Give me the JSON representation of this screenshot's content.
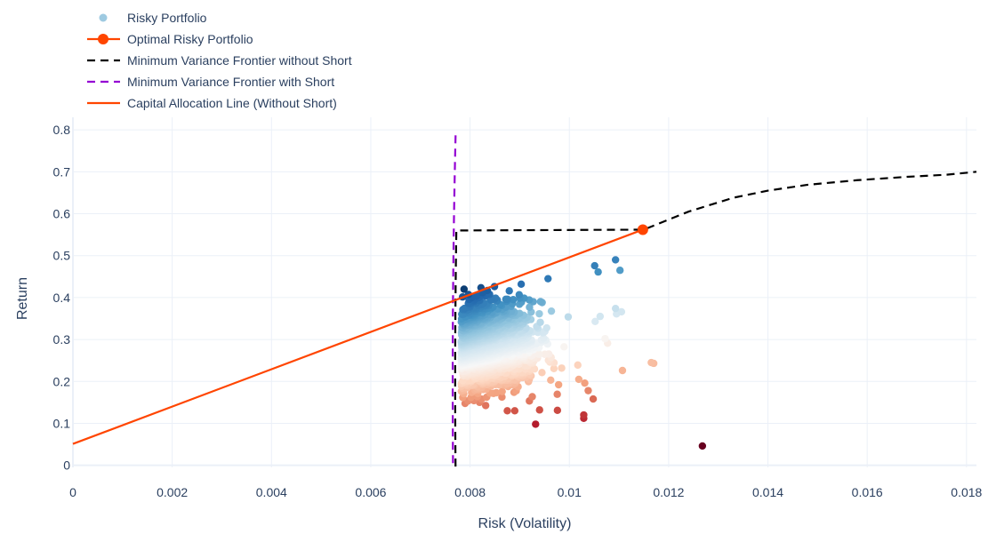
{
  "chart_data": {
    "type": "scatter",
    "title": "",
    "xlabel": "Risk (Volatility)",
    "ylabel": "Return",
    "xlim": [
      0,
      0.0182
    ],
    "ylim": [
      -0.005,
      0.83
    ],
    "x_ticks": [
      0,
      0.002,
      0.004,
      0.006,
      0.008,
      0.01,
      0.012,
      0.014,
      0.016,
      0.018
    ],
    "x_tick_labels": [
      "0",
      "0.002",
      "0.004",
      "0.006",
      "0.008",
      "0.01",
      "0.012",
      "0.014",
      "0.016",
      "0.018"
    ],
    "y_ticks": [
      0,
      0.1,
      0.2,
      0.3,
      0.4,
      0.5,
      0.6,
      0.7,
      0.8
    ],
    "y_tick_labels": [
      "0",
      "0.1",
      "0.2",
      "0.3",
      "0.4",
      "0.5",
      "0.6",
      "0.7",
      "0.8"
    ],
    "grid": true,
    "legend_position": "top-left",
    "colors": {
      "optimal": "#ff4500",
      "cal": "#ff4500",
      "frontier_no_short": "#000000",
      "frontier_short": "#9400d3",
      "risky_legend": "#9ecae1",
      "grid": "#ebf0f8",
      "zeroline": "#ebf0f8"
    },
    "series": [
      {
        "name": "Risky Portfolio",
        "mode": "markers",
        "colorscale": "RdBu",
        "cloud": {
          "count": 1900,
          "r_lo": 0.135,
          "r_hi": 0.44,
          "seed": 7
        },
        "points": [
          [
            0.00932,
            0.098
          ],
          [
            0.01029,
            0.112
          ],
          [
            0.01029,
            0.12
          ],
          [
            0.00976,
            0.131
          ],
          [
            0.00875,
            0.13
          ],
          [
            0.0089,
            0.13
          ],
          [
            0.01268,
            0.046
          ],
          [
            0.0117,
            0.243
          ],
          [
            0.01165,
            0.245
          ],
          [
            0.01107,
            0.226
          ],
          [
            0.01072,
            0.302
          ],
          [
            0.01077,
            0.291
          ],
          [
            0.01105,
            0.366
          ],
          [
            0.01093,
            0.374
          ],
          [
            0.01095,
            0.361
          ],
          [
            0.01062,
            0.355
          ],
          [
            0.01052,
            0.343
          ],
          [
            0.01048,
            0.158
          ],
          [
            0.01038,
            0.178
          ],
          [
            0.01031,
            0.196
          ],
          [
            0.01019,
            0.205
          ],
          [
            0.01017,
            0.239
          ],
          [
            0.01102,
            0.465
          ],
          [
            0.01093,
            0.49
          ],
          [
            0.01051,
            0.476
          ],
          [
            0.01058,
            0.461
          ],
          [
            0.00957,
            0.445
          ],
          [
            0.00872,
            0.396
          ],
          [
            0.00879,
            0.416
          ],
          [
            0.00903,
            0.432
          ],
          [
            0.00853,
            0.173
          ],
          [
            0.00817,
            0.18
          ],
          [
            0.0094,
            0.132
          ]
        ]
      },
      {
        "name": "Optimal Risky Portfolio",
        "mode": "markers",
        "points": [
          [
            0.01148,
            0.562
          ]
        ]
      },
      {
        "name": "Minimum Variance Frontier without Short",
        "mode": "lines",
        "style": "dashed",
        "curve": {
          "type": "parabola_left",
          "min_risk": 0.0077,
          "return_at_min": 0.2,
          "k": 2.8e-06,
          "r_from": -0.003,
          "r_to": 0.56
        },
        "points": [
          [
            0.0115,
            0.562
          ],
          [
            0.0124,
            0.605
          ],
          [
            0.0133,
            0.638
          ],
          [
            0.014,
            0.655
          ],
          [
            0.0148,
            0.669
          ],
          [
            0.0158,
            0.68
          ],
          [
            0.0168,
            0.688
          ],
          [
            0.0176,
            0.693
          ],
          [
            0.0182,
            0.7
          ]
        ]
      },
      {
        "name": "Minimum Variance Frontier with Short",
        "mode": "lines",
        "style": "dashed",
        "curve": {
          "type": "parabola_left",
          "min_risk": 0.00765,
          "return_at_min": 0.2,
          "k": 2.6e-06,
          "r_from": 0.005,
          "r_to": 0.798
        }
      },
      {
        "name": "Capital Allocation Line (Without Short)",
        "mode": "lines",
        "points": [
          [
            0,
            0.051
          ],
          [
            0.01148,
            0.562
          ]
        ]
      }
    ]
  }
}
